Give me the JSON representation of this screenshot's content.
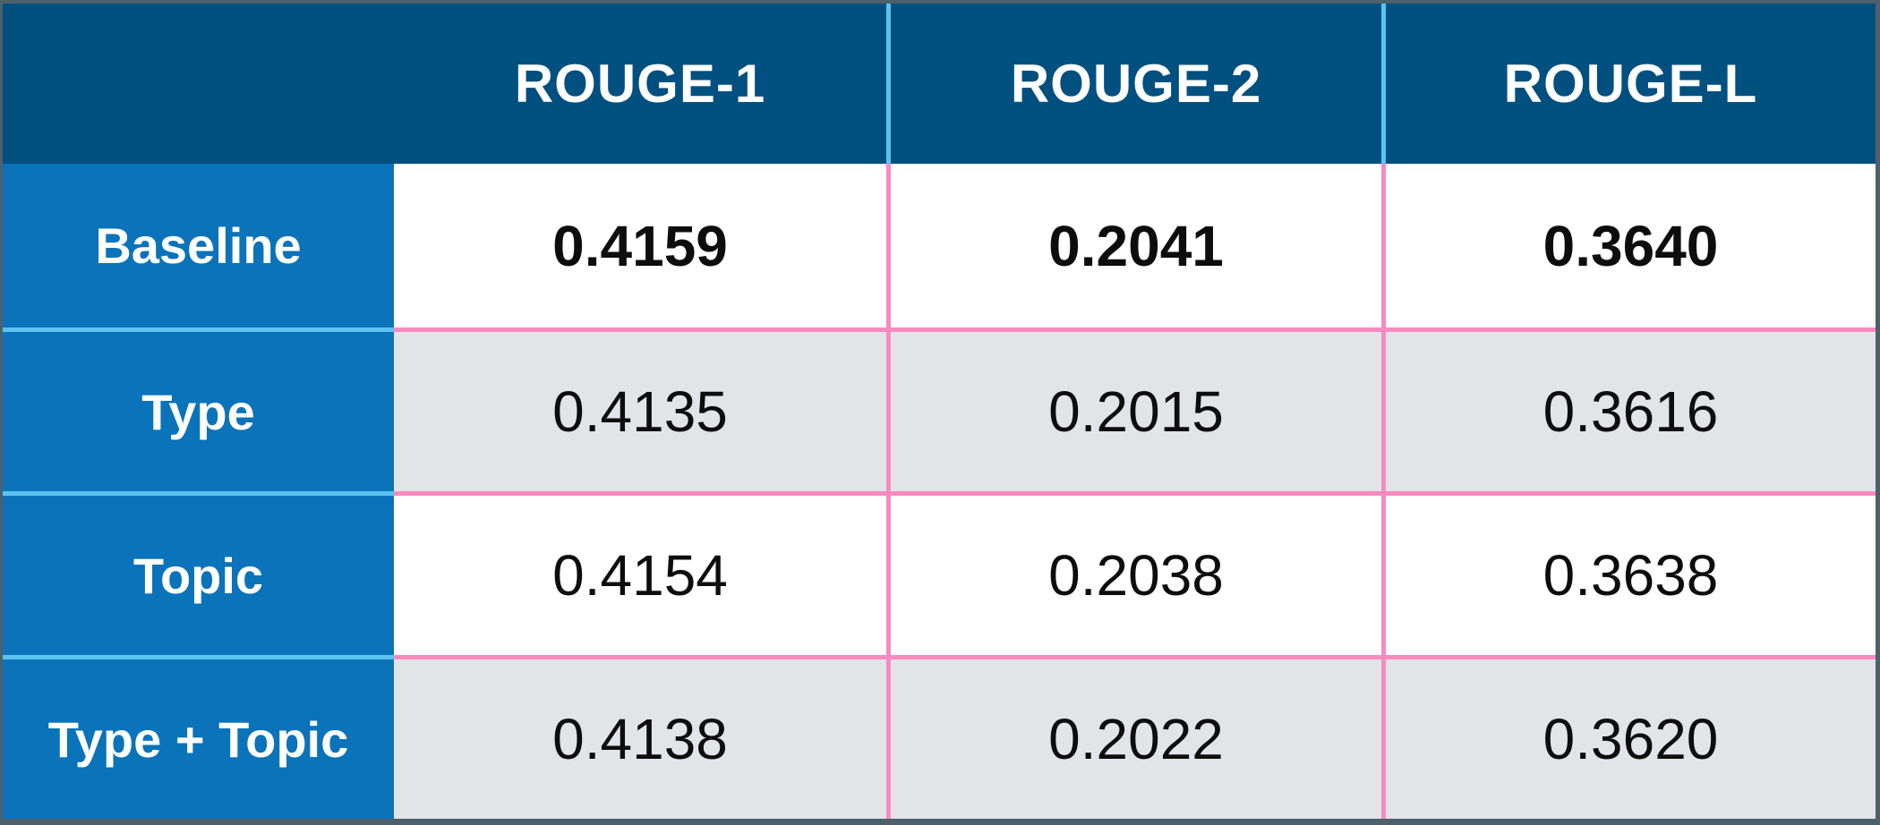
{
  "colors": {
    "border": "#4C616B",
    "header_bg": "#02507F",
    "header_text": "#FFFFFF",
    "label_bg": "#0A73BA",
    "label_text": "#FFFFFF",
    "row_white": "#FFFFFF",
    "row_gray": "#E3E4E8",
    "divider_pink": "#F78BC0",
    "divider_sky": "#5CC3EE",
    "value_text": "#0D0D0D"
  },
  "table": {
    "corner_label": "",
    "columns": [
      "ROUGE-1",
      "ROUGE-2",
      "ROUGE-L"
    ],
    "rows": [
      {
        "label": "Baseline",
        "values": [
          "0.4159",
          "0.2041",
          "0.3640"
        ]
      },
      {
        "label": "Type",
        "values": [
          "0.4135",
          "0.2015",
          "0.3616"
        ]
      },
      {
        "label": "Topic",
        "values": [
          "0.4154",
          "0.2038",
          "0.3638"
        ]
      },
      {
        "label": "Type + Topic",
        "values": [
          "0.4138",
          "0.2022",
          "0.3620"
        ]
      }
    ]
  },
  "chart_data": {
    "type": "table",
    "columns": [
      "",
      "ROUGE-1",
      "ROUGE-2",
      "ROUGE-L"
    ],
    "rows": [
      [
        "Baseline",
        0.4159,
        0.2041,
        0.364
      ],
      [
        "Type",
        0.4135,
        0.2015,
        0.3616
      ],
      [
        "Topic",
        0.4154,
        0.2038,
        0.3638
      ],
      [
        "Type + Topic",
        0.4138,
        0.2022,
        0.362
      ]
    ],
    "notes": "Baseline row values rendered in bold; zebra striping white/gray on data rows"
  }
}
